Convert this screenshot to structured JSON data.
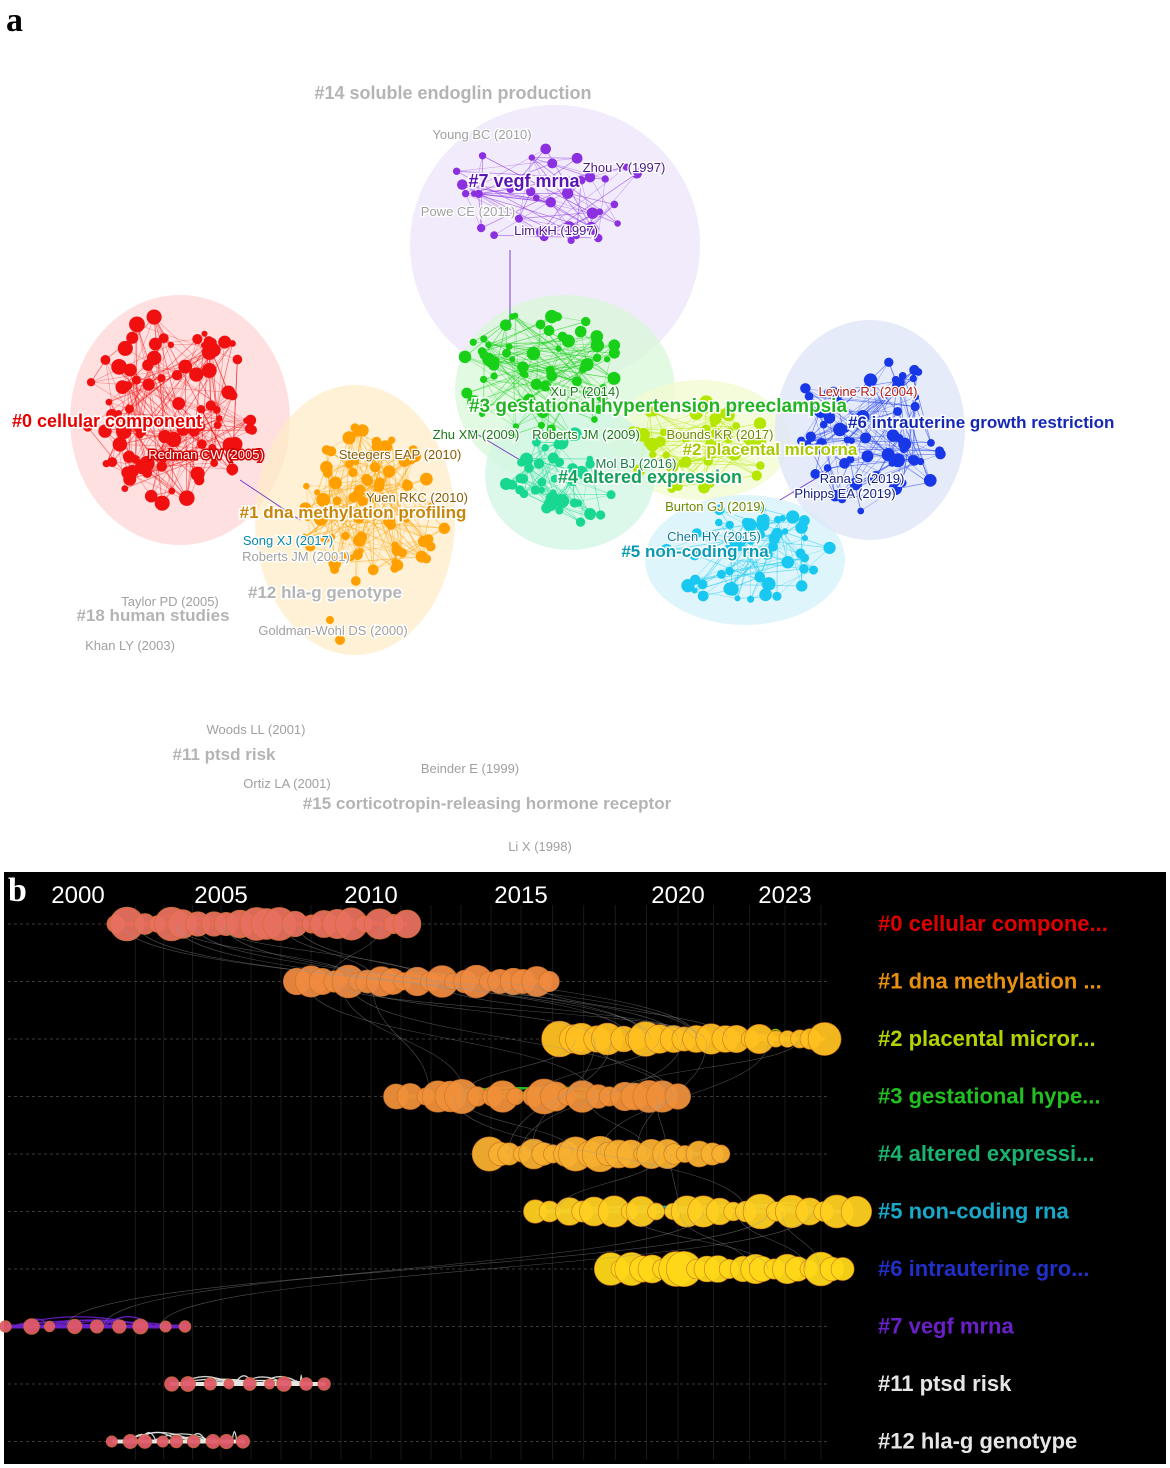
{
  "panel_a": {
    "letter": "a",
    "clusters": [
      {
        "id": "c0",
        "label": "#0 cellular component",
        "color": "#e60000"
      },
      {
        "id": "c1",
        "label": "#1 dna methylation profiling",
        "color": "#c8860a"
      },
      {
        "id": "c2",
        "label": "#2 placental microrna",
        "color": "#a8c800"
      },
      {
        "id": "c3",
        "label": "#3 gestational hypertension preeclampsia",
        "color": "#22b422"
      },
      {
        "id": "c4",
        "label": "#4 altered expression",
        "color": "#14a05a"
      },
      {
        "id": "c5",
        "label": "#5 non-coding rna",
        "color": "#0a9ab4"
      },
      {
        "id": "c6",
        "label": "#6 intrauterine growth restriction",
        "color": "#1428b4"
      },
      {
        "id": "c7",
        "label": "#7 vegf mrna",
        "color": "#5a14b4"
      },
      {
        "id": "c11",
        "label": "#11 ptsd risk",
        "color": "#b4b4b4"
      },
      {
        "id": "c12",
        "label": "#12 hla-g genotype",
        "color": "#b4b4b4"
      },
      {
        "id": "c14",
        "label": "#14 soluble endoglin production",
        "color": "#b4b4b4"
      },
      {
        "id": "c15",
        "label": "#15 corticotropin-releasing hormone receptor",
        "color": "#b4b4b4"
      },
      {
        "id": "c18",
        "label": "#18 human studies",
        "color": "#b4b4b4"
      }
    ],
    "authors": [
      {
        "id": "young",
        "text": "Young BC (2010)",
        "color": "#a0a0a0"
      },
      {
        "id": "zhou",
        "text": "Zhou Y (1997)",
        "color": "#4a1a8a"
      },
      {
        "id": "powe",
        "text": "Powe CE (2011)",
        "color": "#a0a0a0"
      },
      {
        "id": "lim",
        "text": "Lim KH (1997)",
        "color": "#4a1a8a"
      },
      {
        "id": "redman",
        "text": "Redman CW (2005)",
        "color": "#ffffff"
      },
      {
        "id": "steegers",
        "text": "Steegers EAP (2010)",
        "color": "#8a5a00"
      },
      {
        "id": "yuen",
        "text": "Yuen RKC (2010)",
        "color": "#8a5a00"
      },
      {
        "id": "song",
        "text": "Song XJ (2017)",
        "color": "#0a8aaa"
      },
      {
        "id": "roberts2001",
        "text": "Roberts JM (2001)",
        "color": "#a0a0a0"
      },
      {
        "id": "taylor",
        "text": "Taylor PD (2005)",
        "color": "#a0a0a0"
      },
      {
        "id": "khan",
        "text": "Khan LY (2003)",
        "color": "#a0a0a0"
      },
      {
        "id": "goldman",
        "text": "Goldman-Wohl DS (2000)",
        "color": "#a0a0a0"
      },
      {
        "id": "xu",
        "text": "Xu P (2014)",
        "color": "#1a7a1a"
      },
      {
        "id": "zhu",
        "text": "Zhu XM (2009)",
        "color": "#1a7a1a"
      },
      {
        "id": "roberts2009",
        "text": "Roberts JM (2009)",
        "color": "#1a7a1a"
      },
      {
        "id": "bounds",
        "text": "Bounds KR (2017)",
        "color": "#6a8a00"
      },
      {
        "id": "mol",
        "text": "Mol BJ (2016)",
        "color": "#1a7a4a"
      },
      {
        "id": "burton",
        "text": "Burton GJ (2019)",
        "color": "#6a8a00"
      },
      {
        "id": "chen",
        "text": "Chen HY (2015)",
        "color": "#0a7a9a"
      },
      {
        "id": "levine",
        "text": "Levine RJ (2004)",
        "color": "#b41a1a"
      },
      {
        "id": "rana",
        "text": "Rana S (2019)",
        "color": "#142080"
      },
      {
        "id": "phipps",
        "text": "Phipps EA (2019)",
        "color": "#142080"
      },
      {
        "id": "woods",
        "text": "Woods LL (2001)",
        "color": "#a0a0a0"
      },
      {
        "id": "ortiz",
        "text": "Ortiz LA (2001)",
        "color": "#a0a0a0"
      },
      {
        "id": "beinder",
        "text": "Beinder E (1999)",
        "color": "#a0a0a0"
      },
      {
        "id": "li",
        "text": "Li X (1998)",
        "color": "#a0a0a0"
      }
    ]
  },
  "panel_b": {
    "letter": "b",
    "years": [
      "2000",
      "2005",
      "2010",
      "2015",
      "2020",
      "2023"
    ],
    "year_values": [
      2000,
      2005,
      2010,
      2015,
      2020,
      2023
    ],
    "rows": [
      {
        "label": "#0 cellular compone...",
        "color": "#e00000",
        "start": 2001.3,
        "end": 2011.2,
        "node": "#e87060"
      },
      {
        "label": "#1 dna methylation ...",
        "color": "#e89010",
        "start": 2007.6,
        "end": 2015.8,
        "node": "#f08a40"
      },
      {
        "label": "#2 placental micror...",
        "color": "#b4d200",
        "start": 2016.2,
        "end": 2024.1,
        "node": "#ffc020"
      },
      {
        "label": "#3 gestational hype...",
        "color": "#20c020",
        "start": 2010.9,
        "end": 2019.9,
        "node": "#f0903a"
      },
      {
        "label": "#4 altered expressi...",
        "color": "#18b470",
        "start": 2013.9,
        "end": 2021.2,
        "node": "#f8b030"
      },
      {
        "label": "#5 non-coding rna",
        "color": "#18a8c8",
        "start": 2015.5,
        "end": 2024.9,
        "node": "#ffd020"
      },
      {
        "label": "#6 intrauterine gro...",
        "color": "#2030c8",
        "start": 2017.8,
        "end": 2024.6,
        "node": "#ffd818"
      },
      {
        "label": "#7 vegf mrna",
        "color": "#6a20c8",
        "start": 1997.5,
        "end": 2003.8,
        "node": "#e05a6a"
      },
      {
        "label": "#11 ptsd risk",
        "color": "#e6e6e6",
        "start": 2003.2,
        "end": 2008.5,
        "node": "#e05a6a"
      },
      {
        "label": "#12 hla-g genotype",
        "color": "#e6e6e6",
        "start": 2001.2,
        "end": 2005.8,
        "node": "#e05a6a"
      }
    ]
  }
}
